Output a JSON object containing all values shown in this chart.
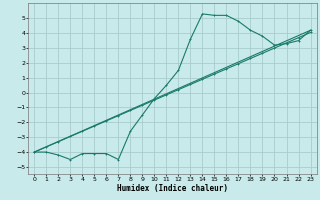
{
  "xlabel": "Humidex (Indice chaleur)",
  "bg_color": "#c8eaea",
  "grid_color": "#a8cccc",
  "line_color": "#1a7a6a",
  "xlim": [
    -0.5,
    23.5
  ],
  "ylim": [
    -5.5,
    6.0
  ],
  "xticks": [
    0,
    1,
    2,
    3,
    4,
    5,
    6,
    7,
    8,
    9,
    10,
    11,
    12,
    13,
    14,
    15,
    16,
    17,
    18,
    19,
    20,
    21,
    22,
    23
  ],
  "yticks": [
    -5,
    -4,
    -3,
    -2,
    -1,
    0,
    1,
    2,
    3,
    4,
    5
  ],
  "line1_x": [
    0,
    1,
    2,
    3,
    4,
    5,
    6,
    7,
    8,
    9,
    10,
    11,
    12,
    13,
    14,
    15,
    16,
    17,
    18,
    19,
    20,
    21,
    22,
    23
  ],
  "line1_y": [
    -4.0,
    -4.0,
    -4.2,
    -4.5,
    -4.1,
    -4.1,
    -4.1,
    -4.5,
    -2.6,
    -1.5,
    -0.4,
    0.5,
    1.5,
    3.6,
    5.3,
    5.2,
    5.2,
    4.8,
    4.2,
    3.8,
    3.2,
    3.3,
    3.5,
    4.2
  ],
  "line2_x": [
    0,
    1,
    2,
    3,
    4,
    5,
    6,
    7,
    8,
    9,
    10,
    11,
    12,
    13,
    14,
    15,
    16,
    17,
    18,
    19,
    20,
    21,
    22,
    23
  ],
  "line2_y": [
    -4.0,
    -3.65,
    -3.3,
    -2.95,
    -2.6,
    -2.25,
    -1.9,
    -1.55,
    -1.2,
    -0.85,
    -0.5,
    -0.15,
    0.2,
    0.55,
    0.9,
    1.25,
    1.6,
    1.95,
    2.3,
    2.65,
    3.0,
    3.35,
    3.7,
    4.05
  ],
  "line3_x": [
    0,
    23
  ],
  "line3_y": [
    -4.0,
    4.2
  ]
}
